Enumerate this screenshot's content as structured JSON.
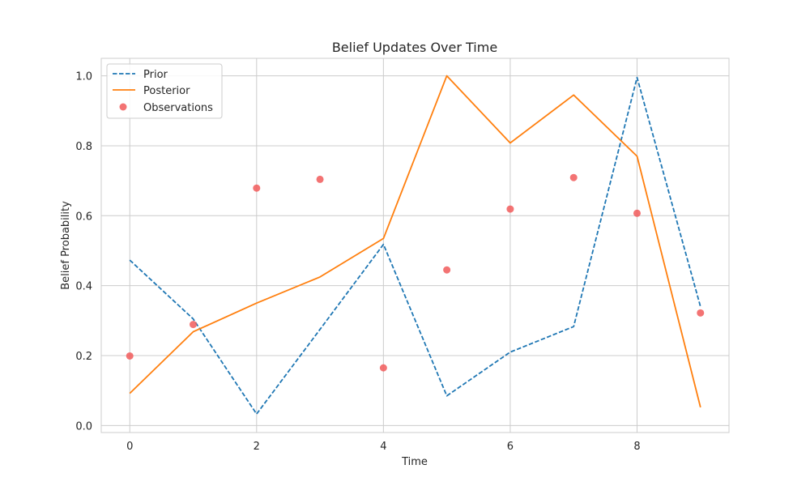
{
  "chart_data": {
    "type": "line",
    "title": "Belief Updates Over Time",
    "xlabel": "Time",
    "ylabel": "Belief Probability",
    "xlim": [
      -0.45,
      9.45
    ],
    "ylim": [
      -0.02,
      1.05
    ],
    "xticks": [
      0,
      2,
      4,
      6,
      8
    ],
    "yticks": [
      0.0,
      0.2,
      0.4,
      0.6,
      0.8,
      1.0
    ],
    "xtick_labels": [
      "0",
      "2",
      "4",
      "6",
      "8"
    ],
    "ytick_labels": [
      "0.0",
      "0.2",
      "0.4",
      "0.6",
      "0.8",
      "1.0"
    ],
    "grid": true,
    "legend_position": "upper-left",
    "x": [
      0,
      1,
      2,
      3,
      4,
      5,
      6,
      7,
      8,
      9
    ],
    "series": [
      {
        "name": "Prior",
        "style": "dashed-line",
        "color": "#1f77b4",
        "values": [
          0.473,
          0.305,
          0.033,
          0.275,
          0.518,
          0.085,
          0.21,
          0.283,
          0.995,
          0.34
        ]
      },
      {
        "name": "Posterior",
        "style": "solid-line",
        "color": "#ff7f0e",
        "values": [
          0.092,
          0.268,
          0.35,
          0.425,
          0.535,
          1.0,
          0.808,
          0.945,
          0.77,
          0.052
        ]
      },
      {
        "name": "Observations",
        "style": "scatter",
        "color": "#f15a5a",
        "values": [
          0.199,
          0.289,
          0.679,
          0.704,
          0.165,
          0.445,
          0.619,
          0.709,
          0.607,
          0.322
        ]
      }
    ]
  }
}
